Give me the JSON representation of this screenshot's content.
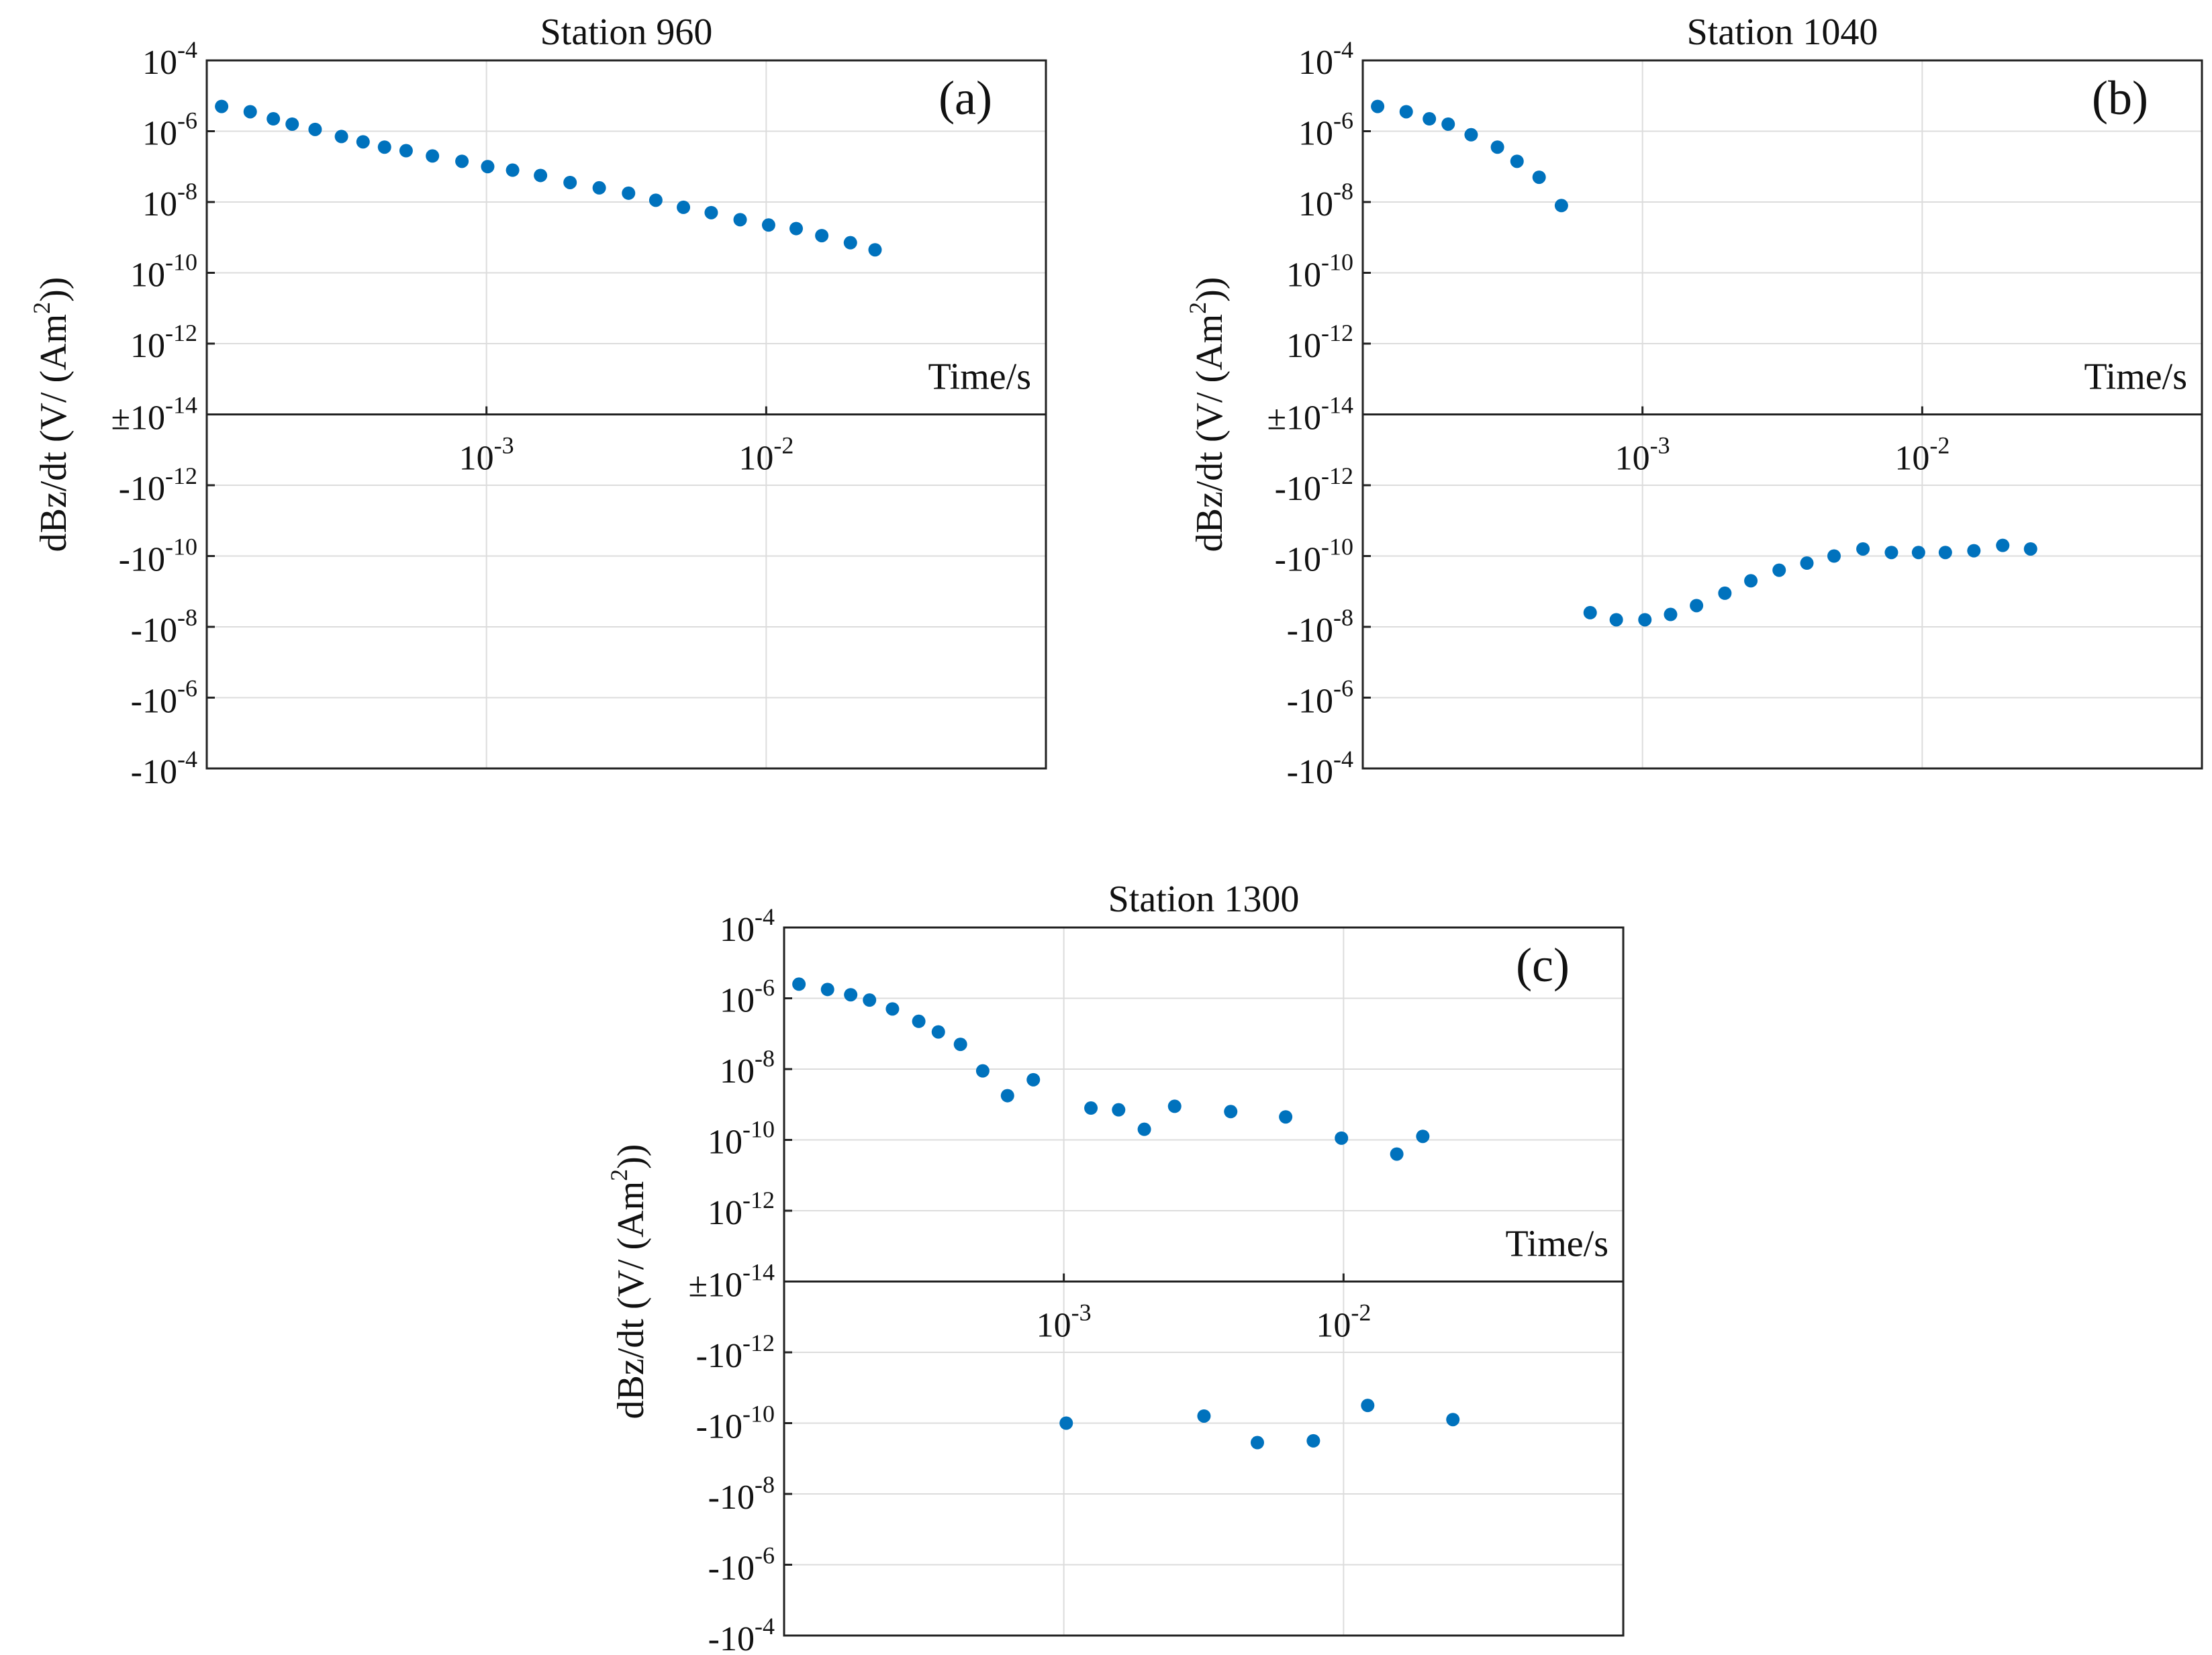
{
  "chart_data": [
    {
      "type": "scatter",
      "panel_label": "(a)",
      "title": "Station 960",
      "xlabel": "Time/s",
      "ylabel": "dBz/dt (V/ (Am2))",
      "xscale": "log",
      "xlim": [
        0.0001,
        0.1
      ],
      "yscale": "signed-log",
      "ylim_exponents": [
        -4,
        -14
      ],
      "grid": true,
      "marker_color": "#0072BD",
      "xticks": [
        {
          "x": 0.001,
          "base": "10",
          "exp": "-3"
        },
        {
          "x": 0.01,
          "base": "10",
          "exp": "-2"
        }
      ],
      "yticks_pos": [
        {
          "e": -4,
          "base": "10",
          "exp": "-4"
        },
        {
          "e": -6,
          "base": "10",
          "exp": "-6"
        },
        {
          "e": -8,
          "base": "10",
          "exp": "-8"
        },
        {
          "e": -10,
          "base": "10",
          "exp": "-10"
        },
        {
          "e": -12,
          "base": "10",
          "exp": "-12"
        }
      ],
      "ytick_center": {
        "base": "±10",
        "exp": "-14"
      },
      "yticks_neg": [
        {
          "e": -12,
          "base": "-10",
          "exp": "-12"
        },
        {
          "e": -10,
          "base": "-10",
          "exp": "-10"
        },
        {
          "e": -8,
          "base": "-10",
          "exp": "-8"
        },
        {
          "e": -6,
          "base": "-10",
          "exp": "-6"
        },
        {
          "e": -4,
          "base": "-10",
          "exp": "-4"
        }
      ],
      "points": [
        {
          "t": 0.000113,
          "sign": 1,
          "exp": -5.3
        },
        {
          "t": 0.000143,
          "sign": 1,
          "exp": -5.45
        },
        {
          "t": 0.000173,
          "sign": 1,
          "exp": -5.65
        },
        {
          "t": 0.000202,
          "sign": 1,
          "exp": -5.8
        },
        {
          "t": 0.000244,
          "sign": 1,
          "exp": -5.95
        },
        {
          "t": 0.000303,
          "sign": 1,
          "exp": -6.15
        },
        {
          "t": 0.000362,
          "sign": 1,
          "exp": -6.3
        },
        {
          "t": 0.000432,
          "sign": 1,
          "exp": -6.45
        },
        {
          "t": 0.000516,
          "sign": 1,
          "exp": -6.55
        },
        {
          "t": 0.000641,
          "sign": 1,
          "exp": -6.7
        },
        {
          "t": 0.000817,
          "sign": 1,
          "exp": -6.85
        },
        {
          "t": 0.00101,
          "sign": 1,
          "exp": -7.0
        },
        {
          "t": 0.00124,
          "sign": 1,
          "exp": -7.1
        },
        {
          "t": 0.00156,
          "sign": 1,
          "exp": -7.25
        },
        {
          "t": 0.00199,
          "sign": 1,
          "exp": -7.45
        },
        {
          "t": 0.00253,
          "sign": 1,
          "exp": -7.6
        },
        {
          "t": 0.00322,
          "sign": 1,
          "exp": -7.75
        },
        {
          "t": 0.00403,
          "sign": 1,
          "exp": -7.95
        },
        {
          "t": 0.00506,
          "sign": 1,
          "exp": -8.15
        },
        {
          "t": 0.00636,
          "sign": 1,
          "exp": -8.3
        },
        {
          "t": 0.00807,
          "sign": 1,
          "exp": -8.5
        },
        {
          "t": 0.0102,
          "sign": 1,
          "exp": -8.65
        },
        {
          "t": 0.0128,
          "sign": 1,
          "exp": -8.75
        },
        {
          "t": 0.0158,
          "sign": 1,
          "exp": -8.95
        },
        {
          "t": 0.02,
          "sign": 1,
          "exp": -9.15
        },
        {
          "t": 0.0245,
          "sign": 1,
          "exp": -9.35
        }
      ]
    },
    {
      "type": "scatter",
      "panel_label": "(b)",
      "title": "Station 1040",
      "xlabel": "Time/s",
      "ylabel": "dBz/dt (V/ (Am2))",
      "xscale": "log",
      "xlim": [
        0.0001,
        0.1
      ],
      "yscale": "signed-log",
      "ylim_exponents": [
        -4,
        -14
      ],
      "grid": true,
      "marker_color": "#0072BD",
      "xticks": [
        {
          "x": 0.001,
          "base": "10",
          "exp": "-3"
        },
        {
          "x": 0.01,
          "base": "10",
          "exp": "-2"
        }
      ],
      "yticks_pos": [
        {
          "e": -4,
          "base": "10",
          "exp": "-4"
        },
        {
          "e": -6,
          "base": "10",
          "exp": "-6"
        },
        {
          "e": -8,
          "base": "10",
          "exp": "-8"
        },
        {
          "e": -10,
          "base": "10",
          "exp": "-10"
        },
        {
          "e": -12,
          "base": "10",
          "exp": "-12"
        }
      ],
      "ytick_center": {
        "base": "±10",
        "exp": "-14"
      },
      "yticks_neg": [
        {
          "e": -12,
          "base": "-10",
          "exp": "-12"
        },
        {
          "e": -10,
          "base": "-10",
          "exp": "-10"
        },
        {
          "e": -8,
          "base": "-10",
          "exp": "-8"
        },
        {
          "e": -6,
          "base": "-10",
          "exp": "-6"
        },
        {
          "e": -4,
          "base": "-10",
          "exp": "-4"
        }
      ],
      "points": [
        {
          "t": 0.000113,
          "sign": 1,
          "exp": -5.3
        },
        {
          "t": 0.000143,
          "sign": 1,
          "exp": -5.45
        },
        {
          "t": 0.000173,
          "sign": 1,
          "exp": -5.65
        },
        {
          "t": 0.000202,
          "sign": 1,
          "exp": -5.8
        },
        {
          "t": 0.000244,
          "sign": 1,
          "exp": -6.1
        },
        {
          "t": 0.000303,
          "sign": 1,
          "exp": -6.45
        },
        {
          "t": 0.000356,
          "sign": 1,
          "exp": -6.85
        },
        {
          "t": 0.000427,
          "sign": 1,
          "exp": -7.3
        },
        {
          "t": 0.000513,
          "sign": 1,
          "exp": -8.1
        },
        {
          "t": 0.00065,
          "sign": -1,
          "exp": -8.4
        },
        {
          "t": 0.000806,
          "sign": -1,
          "exp": -8.2
        },
        {
          "t": 0.00102,
          "sign": -1,
          "exp": -8.2
        },
        {
          "t": 0.00126,
          "sign": -1,
          "exp": -8.35
        },
        {
          "t": 0.00156,
          "sign": -1,
          "exp": -8.6
        },
        {
          "t": 0.00197,
          "sign": -1,
          "exp": -8.95
        },
        {
          "t": 0.00244,
          "sign": -1,
          "exp": -9.3
        },
        {
          "t": 0.00308,
          "sign": -1,
          "exp": -9.6
        },
        {
          "t": 0.00387,
          "sign": -1,
          "exp": -9.8
        },
        {
          "t": 0.00484,
          "sign": -1,
          "exp": -10.0
        },
        {
          "t": 0.00614,
          "sign": -1,
          "exp": -10.2
        },
        {
          "t": 0.00776,
          "sign": -1,
          "exp": -10.1
        },
        {
          "t": 0.0097,
          "sign": -1,
          "exp": -10.1
        },
        {
          "t": 0.0121,
          "sign": -1,
          "exp": -10.1
        },
        {
          "t": 0.0153,
          "sign": -1,
          "exp": -10.15
        },
        {
          "t": 0.0194,
          "sign": -1,
          "exp": -10.3
        },
        {
          "t": 0.0244,
          "sign": -1,
          "exp": -10.2
        }
      ]
    },
    {
      "type": "scatter",
      "panel_label": "(c)",
      "title": "Station 1300",
      "xlabel": "Time/s",
      "ylabel": "dBz/dt (V/ (Am2))",
      "xscale": "log",
      "xlim": [
        0.0001,
        0.1
      ],
      "yscale": "signed-log",
      "ylim_exponents": [
        -4,
        -14
      ],
      "grid": true,
      "marker_color": "#0072BD",
      "xticks": [
        {
          "x": 0.001,
          "base": "10",
          "exp": "-3"
        },
        {
          "x": 0.01,
          "base": "10",
          "exp": "-2"
        }
      ],
      "yticks_pos": [
        {
          "e": -4,
          "base": "10",
          "exp": "-4"
        },
        {
          "e": -6,
          "base": "10",
          "exp": "-6"
        },
        {
          "e": -8,
          "base": "10",
          "exp": "-8"
        },
        {
          "e": -10,
          "base": "10",
          "exp": "-10"
        },
        {
          "e": -12,
          "base": "10",
          "exp": "-12"
        }
      ],
      "ytick_center": {
        "base": "±10",
        "exp": "-14"
      },
      "yticks_neg": [
        {
          "e": -12,
          "base": "-10",
          "exp": "-12"
        },
        {
          "e": -10,
          "base": "-10",
          "exp": "-10"
        },
        {
          "e": -8,
          "base": "-10",
          "exp": "-8"
        },
        {
          "e": -6,
          "base": "-10",
          "exp": "-6"
        },
        {
          "e": -4,
          "base": "-10",
          "exp": "-4"
        }
      ],
      "points": [
        {
          "t": 0.000113,
          "sign": 1,
          "exp": -5.6
        },
        {
          "t": 0.000143,
          "sign": 1,
          "exp": -5.75
        },
        {
          "t": 0.000173,
          "sign": 1,
          "exp": -5.9
        },
        {
          "t": 0.000202,
          "sign": 1,
          "exp": -6.05
        },
        {
          "t": 0.000244,
          "sign": 1,
          "exp": -6.3
        },
        {
          "t": 0.000303,
          "sign": 1,
          "exp": -6.65
        },
        {
          "t": 0.000356,
          "sign": 1,
          "exp": -6.95
        },
        {
          "t": 0.000427,
          "sign": 1,
          "exp": -7.3
        },
        {
          "t": 0.000513,
          "sign": 1,
          "exp": -8.05
        },
        {
          "t": 0.000629,
          "sign": 1,
          "exp": -8.75
        },
        {
          "t": 0.000778,
          "sign": 1,
          "exp": -8.3
        },
        {
          "t": 0.00125,
          "sign": 1,
          "exp": -9.1
        },
        {
          "t": 0.00157,
          "sign": 1,
          "exp": -9.15
        },
        {
          "t": 0.00194,
          "sign": 1,
          "exp": -9.7
        },
        {
          "t": 0.00249,
          "sign": 1,
          "exp": -9.05
        },
        {
          "t": 0.00395,
          "sign": 1,
          "exp": -9.2
        },
        {
          "t": 0.00621,
          "sign": 1,
          "exp": -9.35
        },
        {
          "t": 0.00983,
          "sign": 1,
          "exp": -9.95
        },
        {
          "t": 0.0155,
          "sign": 1,
          "exp": -10.4
        },
        {
          "t": 0.0192,
          "sign": 1,
          "exp": -9.9
        },
        {
          "t": 0.00102,
          "sign": -1,
          "exp": -10.0
        },
        {
          "t": 0.00317,
          "sign": -1,
          "exp": -10.2
        },
        {
          "t": 0.00492,
          "sign": -1,
          "exp": -9.45
        },
        {
          "t": 0.0078,
          "sign": -1,
          "exp": -9.5
        },
        {
          "t": 0.0122,
          "sign": -1,
          "exp": -10.5
        },
        {
          "t": 0.0246,
          "sign": -1,
          "exp": -10.1
        }
      ]
    }
  ]
}
